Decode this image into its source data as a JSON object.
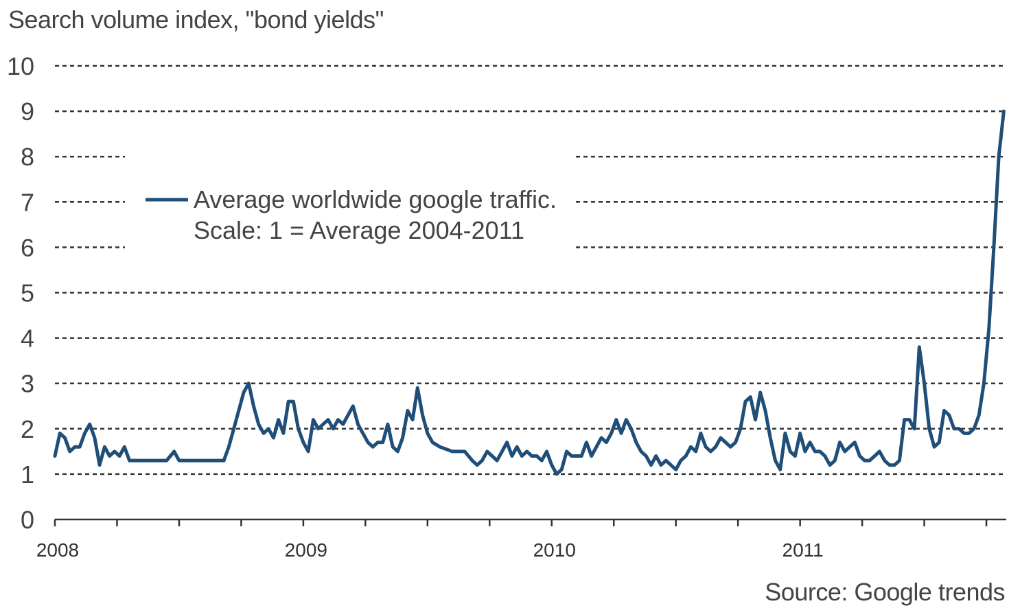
{
  "chart_data": {
    "type": "line",
    "title": "Search volume index, \"bond yields\"",
    "source": "Source: Google trends",
    "ylim": [
      0,
      10
    ],
    "yticks": [
      0,
      1,
      2,
      3,
      4,
      5,
      6,
      7,
      8,
      9,
      10
    ],
    "xlim": [
      2008.0,
      2011.83
    ],
    "xtick_labels": [
      {
        "label": "2008",
        "x": 2008.0
      },
      {
        "label": "2009",
        "x": 2009.0
      },
      {
        "label": "2010",
        "x": 2010.0
      },
      {
        "label": "2011",
        "x": 2011.0
      }
    ],
    "minor_ticks_per_year": 4,
    "grid": "horizontal dashed",
    "legend": {
      "position": "upper-left",
      "lines": [
        "Average worldwide google traffic.",
        "Scale: 1 = Average 2004-2011"
      ]
    },
    "series": [
      {
        "name": "Average worldwide google traffic. Scale: 1 = Average 2004-2011",
        "color": "#1f4e79",
        "points": [
          [
            2008.0,
            1.4
          ],
          [
            2008.02,
            1.9
          ],
          [
            2008.04,
            1.8
          ],
          [
            2008.06,
            1.5
          ],
          [
            2008.08,
            1.6
          ],
          [
            2008.1,
            1.6
          ],
          [
            2008.12,
            1.9
          ],
          [
            2008.14,
            2.1
          ],
          [
            2008.16,
            1.8
          ],
          [
            2008.18,
            1.2
          ],
          [
            2008.2,
            1.6
          ],
          [
            2008.22,
            1.4
          ],
          [
            2008.24,
            1.5
          ],
          [
            2008.26,
            1.4
          ],
          [
            2008.28,
            1.6
          ],
          [
            2008.3,
            1.3
          ],
          [
            2008.35,
            1.3
          ],
          [
            2008.4,
            1.3
          ],
          [
            2008.45,
            1.3
          ],
          [
            2008.48,
            1.5
          ],
          [
            2008.5,
            1.3
          ],
          [
            2008.55,
            1.3
          ],
          [
            2008.6,
            1.3
          ],
          [
            2008.65,
            1.3
          ],
          [
            2008.68,
            1.3
          ],
          [
            2008.7,
            1.6
          ],
          [
            2008.72,
            2.0
          ],
          [
            2008.74,
            2.4
          ],
          [
            2008.76,
            2.8
          ],
          [
            2008.78,
            3.0
          ],
          [
            2008.8,
            2.5
          ],
          [
            2008.82,
            2.1
          ],
          [
            2008.84,
            1.9
          ],
          [
            2008.86,
            2.0
          ],
          [
            2008.88,
            1.8
          ],
          [
            2008.9,
            2.2
          ],
          [
            2008.92,
            1.9
          ],
          [
            2008.94,
            2.6
          ],
          [
            2008.96,
            2.6
          ],
          [
            2008.98,
            2.0
          ],
          [
            2009.0,
            1.7
          ],
          [
            2009.02,
            1.5
          ],
          [
            2009.04,
            2.2
          ],
          [
            2009.06,
            2.0
          ],
          [
            2009.08,
            2.1
          ],
          [
            2009.1,
            2.2
          ],
          [
            2009.12,
            2.0
          ],
          [
            2009.14,
            2.2
          ],
          [
            2009.16,
            2.1
          ],
          [
            2009.18,
            2.3
          ],
          [
            2009.2,
            2.5
          ],
          [
            2009.22,
            2.1
          ],
          [
            2009.24,
            1.9
          ],
          [
            2009.26,
            1.7
          ],
          [
            2009.28,
            1.6
          ],
          [
            2009.3,
            1.7
          ],
          [
            2009.32,
            1.7
          ],
          [
            2009.34,
            2.1
          ],
          [
            2009.36,
            1.6
          ],
          [
            2009.38,
            1.5
          ],
          [
            2009.4,
            1.8
          ],
          [
            2009.42,
            2.4
          ],
          [
            2009.44,
            2.2
          ],
          [
            2009.46,
            2.9
          ],
          [
            2009.48,
            2.3
          ],
          [
            2009.5,
            1.9
          ],
          [
            2009.52,
            1.7
          ],
          [
            2009.55,
            1.6
          ],
          [
            2009.6,
            1.5
          ],
          [
            2009.65,
            1.5
          ],
          [
            2009.68,
            1.3
          ],
          [
            2009.7,
            1.2
          ],
          [
            2009.72,
            1.3
          ],
          [
            2009.74,
            1.5
          ],
          [
            2009.76,
            1.4
          ],
          [
            2009.78,
            1.3
          ],
          [
            2009.8,
            1.5
          ],
          [
            2009.82,
            1.7
          ],
          [
            2009.84,
            1.4
          ],
          [
            2009.86,
            1.6
          ],
          [
            2009.88,
            1.4
          ],
          [
            2009.9,
            1.5
          ],
          [
            2009.92,
            1.4
          ],
          [
            2009.94,
            1.4
          ],
          [
            2009.96,
            1.3
          ],
          [
            2009.98,
            1.5
          ],
          [
            2010.0,
            1.2
          ],
          [
            2010.02,
            1.0
          ],
          [
            2010.04,
            1.1
          ],
          [
            2010.06,
            1.5
          ],
          [
            2010.08,
            1.4
          ],
          [
            2010.1,
            1.4
          ],
          [
            2010.12,
            1.4
          ],
          [
            2010.14,
            1.7
          ],
          [
            2010.16,
            1.4
          ],
          [
            2010.18,
            1.6
          ],
          [
            2010.2,
            1.8
          ],
          [
            2010.22,
            1.7
          ],
          [
            2010.24,
            1.9
          ],
          [
            2010.26,
            2.2
          ],
          [
            2010.28,
            1.9
          ],
          [
            2010.3,
            2.2
          ],
          [
            2010.32,
            2.0
          ],
          [
            2010.34,
            1.7
          ],
          [
            2010.36,
            1.5
          ],
          [
            2010.38,
            1.4
          ],
          [
            2010.4,
            1.2
          ],
          [
            2010.42,
            1.4
          ],
          [
            2010.44,
            1.2
          ],
          [
            2010.46,
            1.3
          ],
          [
            2010.48,
            1.2
          ],
          [
            2010.5,
            1.1
          ],
          [
            2010.52,
            1.3
          ],
          [
            2010.54,
            1.4
          ],
          [
            2010.56,
            1.6
          ],
          [
            2010.58,
            1.5
          ],
          [
            2010.6,
            1.9
          ],
          [
            2010.62,
            1.6
          ],
          [
            2010.64,
            1.5
          ],
          [
            2010.66,
            1.6
          ],
          [
            2010.68,
            1.8
          ],
          [
            2010.7,
            1.7
          ],
          [
            2010.72,
            1.6
          ],
          [
            2010.74,
            1.7
          ],
          [
            2010.76,
            2.0
          ],
          [
            2010.78,
            2.6
          ],
          [
            2010.8,
            2.7
          ],
          [
            2010.82,
            2.2
          ],
          [
            2010.84,
            2.8
          ],
          [
            2010.86,
            2.4
          ],
          [
            2010.88,
            1.8
          ],
          [
            2010.9,
            1.3
          ],
          [
            2010.92,
            1.1
          ],
          [
            2010.94,
            1.9
          ],
          [
            2010.96,
            1.5
          ],
          [
            2010.98,
            1.4
          ],
          [
            2011.0,
            1.9
          ],
          [
            2011.02,
            1.5
          ],
          [
            2011.04,
            1.7
          ],
          [
            2011.06,
            1.5
          ],
          [
            2011.08,
            1.5
          ],
          [
            2011.1,
            1.4
          ],
          [
            2011.12,
            1.2
          ],
          [
            2011.14,
            1.3
          ],
          [
            2011.16,
            1.7
          ],
          [
            2011.18,
            1.5
          ],
          [
            2011.2,
            1.6
          ],
          [
            2011.22,
            1.7
          ],
          [
            2011.24,
            1.4
          ],
          [
            2011.26,
            1.3
          ],
          [
            2011.28,
            1.3
          ],
          [
            2011.3,
            1.4
          ],
          [
            2011.32,
            1.5
          ],
          [
            2011.34,
            1.3
          ],
          [
            2011.36,
            1.2
          ],
          [
            2011.38,
            1.2
          ],
          [
            2011.4,
            1.3
          ],
          [
            2011.42,
            2.2
          ],
          [
            2011.44,
            2.2
          ],
          [
            2011.46,
            2.0
          ],
          [
            2011.48,
            3.8
          ],
          [
            2011.5,
            3.0
          ],
          [
            2011.52,
            2.0
          ],
          [
            2011.54,
            1.6
          ],
          [
            2011.56,
            1.7
          ],
          [
            2011.58,
            2.4
          ],
          [
            2011.6,
            2.3
          ],
          [
            2011.62,
            2.0
          ],
          [
            2011.64,
            2.0
          ],
          [
            2011.66,
            1.9
          ],
          [
            2011.68,
            1.9
          ],
          [
            2011.7,
            2.0
          ],
          [
            2011.72,
            2.3
          ],
          [
            2011.74,
            3.0
          ],
          [
            2011.76,
            4.2
          ],
          [
            2011.78,
            6.0
          ],
          [
            2011.8,
            8.0
          ],
          [
            2011.82,
            9.0
          ]
        ]
      }
    ]
  }
}
